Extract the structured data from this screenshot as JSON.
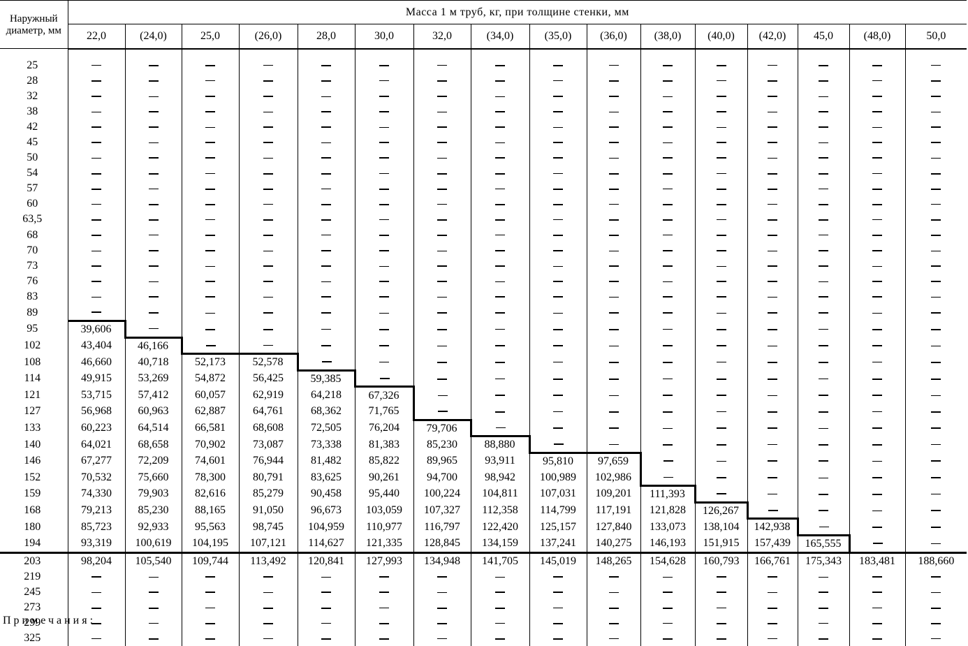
{
  "header": {
    "corner_label": "Наружный диаметр, мм",
    "title": "Масса 1 м труб, кг, при толщине стенки, мм",
    "thicknesses": [
      "22,0",
      "(24,0)",
      "25,0",
      "(26,0)",
      "28,0",
      "30,0",
      "32,0",
      "(34,0)",
      "(35,0)",
      "(36,0)",
      "(38,0)",
      "(40,0)",
      "(42,0)",
      "45,0",
      "(48,0)",
      "50,0"
    ]
  },
  "table": {
    "dash_symbol": "—",
    "rows": [
      {
        "d": "25",
        "v": []
      },
      {
        "d": "28",
        "v": []
      },
      {
        "d": "32",
        "v": []
      },
      {
        "d": "38",
        "v": []
      },
      {
        "d": "42",
        "v": []
      },
      {
        "d": "45",
        "v": []
      },
      {
        "d": "50",
        "v": []
      },
      {
        "d": "54",
        "v": []
      },
      {
        "d": "57",
        "v": []
      },
      {
        "d": "60",
        "v": []
      },
      {
        "d": "63,5",
        "v": []
      },
      {
        "d": "68",
        "v": []
      },
      {
        "d": "70",
        "v": []
      },
      {
        "d": "73",
        "v": []
      },
      {
        "d": "76",
        "v": []
      },
      {
        "d": "83",
        "v": []
      },
      {
        "d": "89",
        "v": []
      },
      {
        "d": "95",
        "v": [
          "39,606"
        ]
      },
      {
        "d": "102",
        "v": [
          "43,404",
          "46,166"
        ]
      },
      {
        "d": "108",
        "v": [
          "46,660",
          "40,718",
          "52,173",
          "52,578"
        ]
      },
      {
        "d": "114",
        "v": [
          "49,915",
          "53,269",
          "54,872",
          "56,425",
          "59,385"
        ]
      },
      {
        "d": "121",
        "v": [
          "53,715",
          "57,412",
          "60,057",
          "62,919",
          "64,218",
          "67,326"
        ]
      },
      {
        "d": "127",
        "v": [
          "56,968",
          "60,963",
          "62,887",
          "64,761",
          "68,362",
          "71,765"
        ]
      },
      {
        "d": "133",
        "v": [
          "60,223",
          "64,514",
          "66,581",
          "68,608",
          "72,505",
          "76,204",
          "79,706"
        ]
      },
      {
        "d": "140",
        "v": [
          "64,021",
          "68,658",
          "70,902",
          "73,087",
          "73,338",
          "81,383",
          "85,230",
          "88,880"
        ]
      },
      {
        "d": "146",
        "v": [
          "67,277",
          "72,209",
          "74,601",
          "76,944",
          "81,482",
          "85,822",
          "89,965",
          "93,911",
          "95,810",
          "97,659"
        ]
      },
      {
        "d": "152",
        "v": [
          "70,532",
          "75,660",
          "78,300",
          "80,791",
          "83,625",
          "90,261",
          "94,700",
          "98,942",
          "100,989",
          "102,986"
        ]
      },
      {
        "d": "159",
        "v": [
          "74,330",
          "79,903",
          "82,616",
          "85,279",
          "90,458",
          "95,440",
          "100,224",
          "104,811",
          "107,031",
          "109,201",
          "111,393"
        ]
      },
      {
        "d": "168",
        "v": [
          "79,213",
          "85,230",
          "88,165",
          "91,050",
          "96,673",
          "103,059",
          "107,327",
          "112,358",
          "114,799",
          "117,191",
          "121,828",
          "126,267"
        ]
      },
      {
        "d": "180",
        "v": [
          "85,723",
          "92,933",
          "95,563",
          "98,745",
          "104,959",
          "110,977",
          "116,797",
          "122,420",
          "125,157",
          "127,840",
          "133,073",
          "138,104",
          "142,938"
        ]
      },
      {
        "d": "194",
        "v": [
          "93,319",
          "100,619",
          "104,195",
          "107,121",
          "114,627",
          "121,335",
          "128,845",
          "134,159",
          "137,241",
          "140,275",
          "146,193",
          "151,915",
          "157,439",
          "165,555"
        ]
      },
      {
        "d": "203",
        "v": [
          "98,204",
          "105,540",
          "109,744",
          "113,492",
          "120,841",
          "127,993",
          "134,948",
          "141,705",
          "145,019",
          "148,265",
          "154,628",
          "160,793",
          "166,761",
          "175,343",
          "183,481",
          "188,660"
        ]
      },
      {
        "d": "219",
        "v": []
      },
      {
        "d": "245",
        "v": []
      },
      {
        "d": "273",
        "v": []
      },
      {
        "d": "299",
        "v": []
      },
      {
        "d": "325",
        "v": []
      }
    ]
  },
  "footer": {
    "note_label": "Примечания:"
  }
}
